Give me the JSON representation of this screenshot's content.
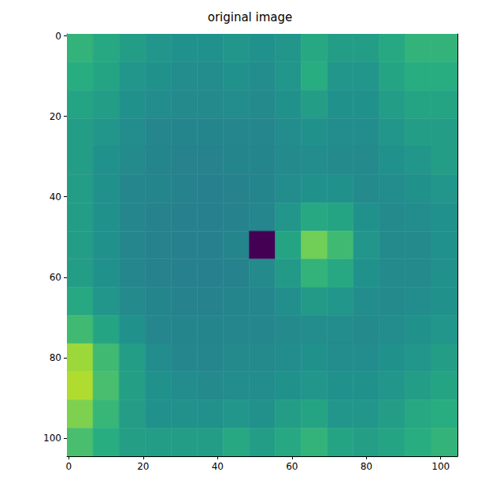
{
  "chart_data": {
    "type": "heatmap",
    "title": "original image",
    "x": [
      3,
      10,
      17,
      24,
      31,
      38,
      45,
      52,
      59,
      66,
      73,
      80,
      87,
      94,
      101
    ],
    "y": [
      3,
      10,
      17,
      24,
      31,
      38,
      45,
      52,
      59,
      66,
      73,
      80,
      87,
      94,
      101
    ],
    "cells": [
      [
        0.65,
        0.6,
        0.55,
        0.52,
        0.5,
        0.5,
        0.52,
        0.5,
        0.52,
        0.6,
        0.55,
        0.55,
        0.6,
        0.65,
        0.65
      ],
      [
        0.62,
        0.58,
        0.52,
        0.5,
        0.48,
        0.48,
        0.5,
        0.48,
        0.52,
        0.62,
        0.52,
        0.52,
        0.58,
        0.62,
        0.62
      ],
      [
        0.58,
        0.55,
        0.5,
        0.48,
        0.47,
        0.47,
        0.48,
        0.47,
        0.5,
        0.55,
        0.5,
        0.5,
        0.55,
        0.58,
        0.58
      ],
      [
        0.55,
        0.52,
        0.48,
        0.46,
        0.45,
        0.45,
        0.46,
        0.46,
        0.48,
        0.5,
        0.48,
        0.48,
        0.52,
        0.55,
        0.55
      ],
      [
        0.55,
        0.5,
        0.47,
        0.45,
        0.44,
        0.44,
        0.45,
        0.45,
        0.47,
        0.48,
        0.47,
        0.47,
        0.5,
        0.52,
        0.55
      ],
      [
        0.55,
        0.5,
        0.46,
        0.45,
        0.44,
        0.43,
        0.44,
        0.45,
        0.48,
        0.5,
        0.5,
        0.47,
        0.48,
        0.5,
        0.52
      ],
      [
        0.55,
        0.5,
        0.46,
        0.44,
        0.43,
        0.43,
        0.44,
        0.46,
        0.52,
        0.6,
        0.58,
        0.5,
        0.47,
        0.48,
        0.5
      ],
      [
        0.55,
        0.5,
        0.46,
        0.44,
        0.43,
        0.43,
        0.45,
        0.0,
        0.58,
        0.78,
        0.68,
        0.52,
        0.47,
        0.47,
        0.5
      ],
      [
        0.55,
        0.5,
        0.46,
        0.44,
        0.43,
        0.43,
        0.44,
        0.47,
        0.54,
        0.65,
        0.6,
        0.5,
        0.47,
        0.47,
        0.5
      ],
      [
        0.6,
        0.52,
        0.47,
        0.45,
        0.44,
        0.44,
        0.45,
        0.46,
        0.49,
        0.54,
        0.52,
        0.48,
        0.47,
        0.48,
        0.5
      ],
      [
        0.68,
        0.58,
        0.5,
        0.46,
        0.45,
        0.45,
        0.46,
        0.46,
        0.47,
        0.48,
        0.48,
        0.47,
        0.48,
        0.5,
        0.52
      ],
      [
        0.85,
        0.68,
        0.55,
        0.48,
        0.46,
        0.46,
        0.47,
        0.47,
        0.48,
        0.5,
        0.48,
        0.48,
        0.5,
        0.52,
        0.55
      ],
      [
        0.88,
        0.7,
        0.56,
        0.5,
        0.48,
        0.47,
        0.48,
        0.48,
        0.5,
        0.52,
        0.5,
        0.5,
        0.52,
        0.55,
        0.58
      ],
      [
        0.8,
        0.66,
        0.55,
        0.5,
        0.5,
        0.5,
        0.52,
        0.5,
        0.55,
        0.58,
        0.52,
        0.52,
        0.55,
        0.6,
        0.62
      ],
      [
        0.7,
        0.62,
        0.56,
        0.55,
        0.55,
        0.55,
        0.6,
        0.55,
        0.6,
        0.65,
        0.58,
        0.56,
        0.58,
        0.62,
        0.65
      ]
    ],
    "color": "viridis",
    "color_range": [
      0,
      1
    ],
    "xlim": [
      -0.5,
      104.5
    ],
    "ylim": [
      104.5,
      -0.5
    ],
    "xticks": [
      0,
      20,
      40,
      60,
      80,
      100
    ],
    "yticks": [
      0,
      20,
      40,
      60,
      80,
      100
    ]
  }
}
